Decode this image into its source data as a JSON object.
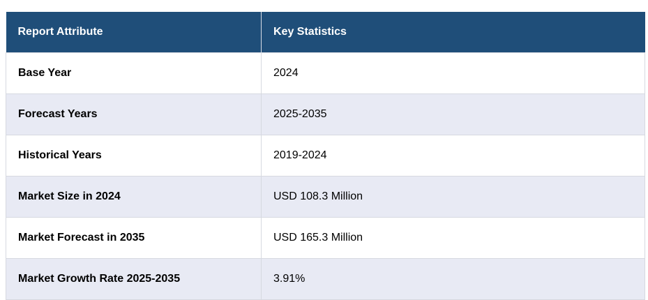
{
  "table": {
    "headers": [
      "Report Attribute",
      "Key Statistics"
    ],
    "rows": [
      {
        "attribute": "Base Year",
        "value": "2024"
      },
      {
        "attribute": "Forecast Years",
        "value": "2025-2035"
      },
      {
        "attribute": "Historical Years",
        "value": "2019-2024"
      },
      {
        "attribute": "Market Size in 2024",
        "value": "USD 108.3 Million"
      },
      {
        "attribute": "Market Forecast in 2035",
        "value": "USD 165.3 Million"
      },
      {
        "attribute": "Market Growth Rate 2025-2035",
        "value": "3.91%"
      }
    ]
  },
  "colors": {
    "header_bg": "#1f4e79",
    "header_text": "#ffffff",
    "row_alt_bg": "#e8eaf4"
  }
}
